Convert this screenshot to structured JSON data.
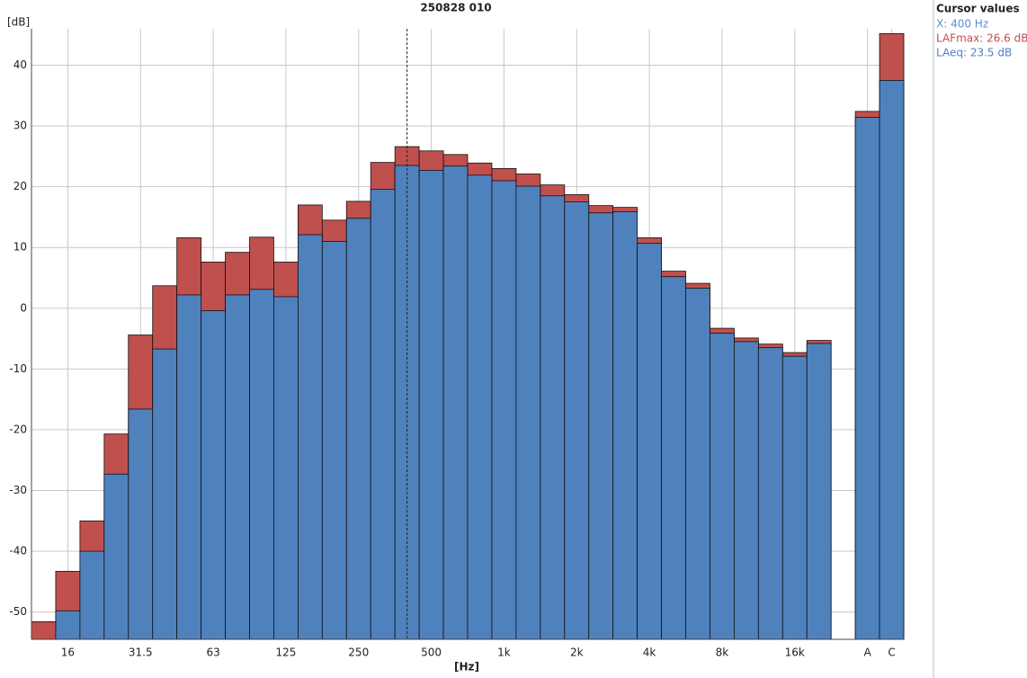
{
  "chart_data": {
    "type": "bar",
    "title": "250828 010",
    "x_label": "[Hz]",
    "y_label": "[dB]",
    "categories": [
      null,
      "16",
      null,
      null,
      "31.5",
      null,
      null,
      "63",
      null,
      null,
      "125",
      null,
      null,
      "250",
      null,
      null,
      "500",
      null,
      null,
      "1k",
      null,
      null,
      "2k",
      null,
      null,
      "4k",
      null,
      null,
      "8k",
      null,
      null,
      "16k",
      null,
      null,
      "A",
      "C"
    ],
    "series": [
      {
        "color": "#c0504d",
        "values": [
          -51.6,
          -43.3,
          -35.0,
          -20.7,
          -4.4,
          3.7,
          11.6,
          7.6,
          9.2,
          11.7,
          7.6,
          17.0,
          14.5,
          17.6,
          24.0,
          26.6,
          25.9,
          25.3,
          23.9,
          23.0,
          22.1,
          20.3,
          18.7,
          16.9,
          16.6,
          11.6,
          6.1,
          4.1,
          -3.3,
          -4.9,
          -5.9,
          -7.3,
          -5.3,
          null,
          32.4,
          45.2
        ]
      },
      {
        "color": "#4f81bd",
        "values": [
          null,
          -49.8,
          -40.0,
          -27.3,
          -16.6,
          -6.7,
          2.2,
          -0.4,
          2.2,
          3.1,
          1.9,
          12.1,
          11.0,
          14.8,
          19.6,
          23.5,
          22.7,
          23.4,
          21.9,
          21.0,
          20.1,
          18.5,
          17.5,
          15.7,
          15.9,
          10.7,
          5.2,
          3.3,
          -4.1,
          -5.5,
          -6.5,
          -7.9,
          -5.8,
          null,
          31.4,
          37.5
        ]
      }
    ],
    "ylim": [
      -54.5,
      46
    ],
    "yticks": [
      -50,
      -40,
      -30,
      -20,
      -10,
      0,
      10,
      20,
      30,
      40
    ],
    "grid": true,
    "cursor": {
      "index": 15,
      "title": "Cursor values",
      "lines": [
        {
          "text": "X: 400 Hz",
          "color": "#5b8fd0"
        },
        {
          "text": "LAFmax: 26.6 dB",
          "color": "#c0504d"
        },
        {
          "text": "LAeq: 23.5 dB",
          "color": "#4f81bd"
        }
      ]
    }
  }
}
